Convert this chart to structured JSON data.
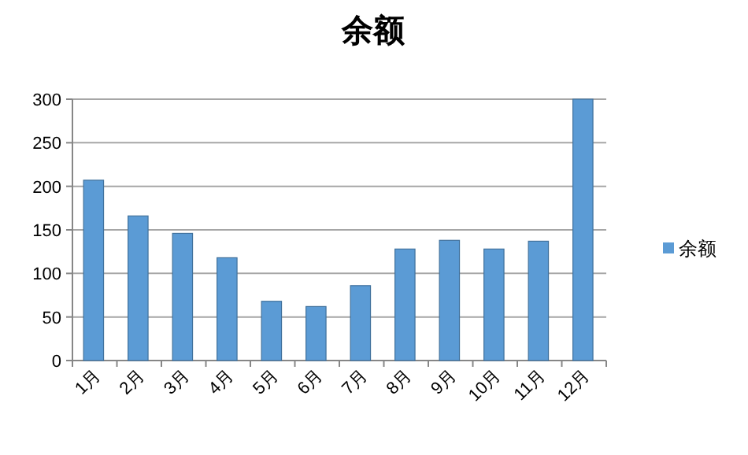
{
  "chart_data": {
    "type": "bar",
    "title": "余额",
    "categories": [
      "1月",
      "2月",
      "3月",
      "4月",
      "5月",
      "6月",
      "7月",
      "8月",
      "9月",
      "10月",
      "11月",
      "12月"
    ],
    "series": [
      {
        "name": "余额",
        "color": "#5b9bd5",
        "values": [
          207,
          166,
          146,
          118,
          68,
          62,
          86,
          128,
          138,
          128,
          137,
          300
        ]
      }
    ],
    "ylim": [
      0,
      300
    ],
    "yticks": [
      0,
      50,
      100,
      150,
      200,
      250,
      300
    ],
    "grid": "y",
    "legend": "right"
  }
}
